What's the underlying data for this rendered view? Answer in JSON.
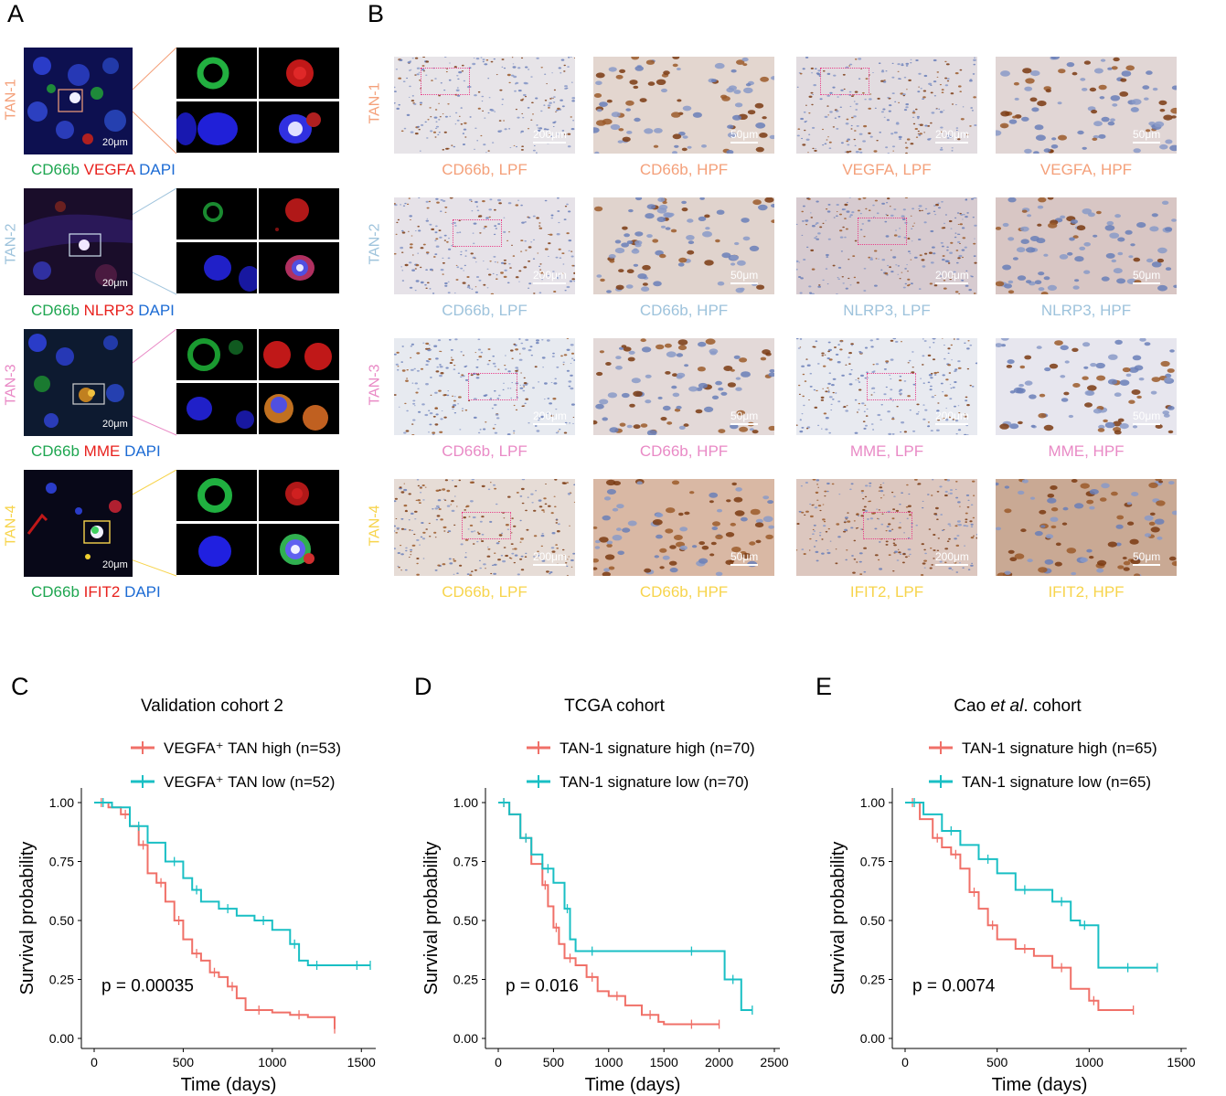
{
  "panels": {
    "A": "A",
    "B": "B",
    "C": "C",
    "D": "D",
    "E": "E"
  },
  "colors": {
    "tan1": "#f4a07a",
    "tan2": "#9ec3dc",
    "tan3": "#e98ac6",
    "tan4": "#f7d44c",
    "green": "#1ea650",
    "red": "#e8211d",
    "blue": "#1c6bd4",
    "km_high": "#f07068",
    "km_low": "#19bfc4"
  },
  "panelA": {
    "rows": [
      {
        "tan": "TAN-1",
        "scale": "20μm",
        "marker": "VEGFA",
        "cd": "CD66b",
        "dapi": "DAPI"
      },
      {
        "tan": "TAN-2",
        "scale": "20μm",
        "marker": "NLRP3",
        "cd": "CD66b",
        "dapi": "DAPI"
      },
      {
        "tan": "TAN-3",
        "scale": "20μm",
        "marker": "MME",
        "cd": "CD66b",
        "dapi": "DAPI"
      },
      {
        "tan": "TAN-4",
        "scale": "20μm",
        "marker": "IFIT2",
        "cd": "CD66b",
        "dapi": "DAPI"
      }
    ]
  },
  "panelB": {
    "rows": [
      {
        "tan": "TAN-1",
        "captions": [
          "CD66b, LPF",
          "CD66b, HPF",
          "VEGFA, LPF",
          "VEGFA, HPF"
        ]
      },
      {
        "tan": "TAN-2",
        "captions": [
          "CD66b, LPF",
          "CD66b, HPF",
          "NLRP3, LPF",
          "NLRP3, HPF"
        ]
      },
      {
        "tan": "TAN-3",
        "captions": [
          "CD66b, LPF",
          "CD66b, HPF",
          "MME, LPF",
          "MME, HPF"
        ]
      },
      {
        "tan": "TAN-4",
        "captions": [
          "CD66b, LPF",
          "CD66b, HPF",
          "IFIT2, LPF",
          "IFIT2, HPF"
        ]
      }
    ],
    "scales": [
      "200μm",
      "50μm",
      "200μm",
      "50μm"
    ]
  },
  "chart_data": [
    {
      "type": "line",
      "panel": "C",
      "title": "Validation cohort 2",
      "xlabel": "Time (days)",
      "ylabel": "Survival probability",
      "xlim": [
        0,
        1550
      ],
      "ylim": [
        0,
        1
      ],
      "xticks": [
        0,
        500,
        1000,
        1500
      ],
      "yticks": [
        "0.00",
        "0.25",
        "0.50",
        "0.75",
        "1.00"
      ],
      "pvalue": "p = 0.00035",
      "series": [
        {
          "name": "VEGFA⁺ TAN high (n=53)",
          "x": [
            0,
            80,
            150,
            200,
            250,
            300,
            350,
            400,
            450,
            500,
            550,
            600,
            650,
            700,
            750,
            800,
            850,
            1000,
            1100,
            1200,
            1350
          ],
          "y": [
            1.0,
            0.98,
            0.95,
            0.9,
            0.82,
            0.7,
            0.66,
            0.58,
            0.5,
            0.42,
            0.36,
            0.33,
            0.28,
            0.26,
            0.22,
            0.17,
            0.12,
            0.11,
            0.1,
            0.09,
            0.04
          ]
        },
        {
          "name": "VEGFA⁺ TAN low (n=52)",
          "x": [
            0,
            100,
            200,
            300,
            400,
            500,
            550,
            600,
            700,
            800,
            900,
            1000,
            1100,
            1150,
            1200,
            1300,
            1400,
            1550
          ],
          "y": [
            1.0,
            0.98,
            0.9,
            0.83,
            0.75,
            0.68,
            0.63,
            0.58,
            0.55,
            0.52,
            0.5,
            0.46,
            0.4,
            0.33,
            0.31,
            0.31,
            0.31,
            0.31
          ]
        }
      ]
    },
    {
      "type": "line",
      "panel": "D",
      "title": "TCGA cohort",
      "xlabel": "Time (days)",
      "ylabel": "Survival probability",
      "xlim": [
        0,
        2500
      ],
      "ylim": [
        0,
        1
      ],
      "xticks": [
        0,
        500,
        1000,
        1500,
        2000,
        2500
      ],
      "yticks": [
        "0.00",
        "0.25",
        "0.50",
        "0.75",
        "1.00"
      ],
      "pvalue": "p = 0.016",
      "series": [
        {
          "name": "TAN-1 signature high (n=70)",
          "x": [
            0,
            100,
            200,
            300,
            400,
            450,
            500,
            550,
            600,
            700,
            800,
            900,
            1000,
            1150,
            1300,
            1450,
            1500,
            2000
          ],
          "y": [
            1.0,
            0.95,
            0.85,
            0.74,
            0.65,
            0.56,
            0.47,
            0.4,
            0.34,
            0.31,
            0.26,
            0.2,
            0.18,
            0.14,
            0.1,
            0.07,
            0.06,
            0.06
          ]
        },
        {
          "name": "TAN-1 signature low (n=70)",
          "x": [
            0,
            100,
            200,
            300,
            400,
            500,
            600,
            650,
            700,
            1000,
            1500,
            2000,
            2050,
            2200,
            2300
          ],
          "y": [
            1.0,
            0.95,
            0.85,
            0.78,
            0.72,
            0.66,
            0.55,
            0.42,
            0.37,
            0.37,
            0.37,
            0.37,
            0.25,
            0.12,
            0.12
          ]
        }
      ]
    },
    {
      "type": "line",
      "panel": "E",
      "title": "Cao et al. cohort",
      "xlabel": "Time (days)",
      "ylabel": "Survival probability",
      "xlim": [
        0,
        1500
      ],
      "ylim": [
        0,
        1
      ],
      "xticks": [
        0,
        500,
        1000,
        1500
      ],
      "yticks": [
        "0.00",
        "0.25",
        "0.50",
        "0.75",
        "1.00"
      ],
      "pvalue": "p = 0.0074",
      "series": [
        {
          "name": "TAN-1 signature high (n=65)",
          "x": [
            0,
            80,
            150,
            200,
            250,
            300,
            350,
            400,
            450,
            500,
            600,
            700,
            800,
            900,
            1000,
            1050,
            1240
          ],
          "y": [
            1.0,
            0.93,
            0.85,
            0.81,
            0.78,
            0.72,
            0.62,
            0.55,
            0.48,
            0.42,
            0.38,
            0.35,
            0.3,
            0.21,
            0.16,
            0.12,
            0.12
          ]
        },
        {
          "name": "TAN-1 signature low (n=65)",
          "x": [
            0,
            100,
            200,
            300,
            400,
            500,
            600,
            700,
            800,
            900,
            950,
            1000,
            1050,
            1370
          ],
          "y": [
            1.0,
            0.95,
            0.88,
            0.82,
            0.76,
            0.7,
            0.63,
            0.63,
            0.58,
            0.5,
            0.48,
            0.48,
            0.3,
            0.3
          ]
        }
      ]
    }
  ]
}
